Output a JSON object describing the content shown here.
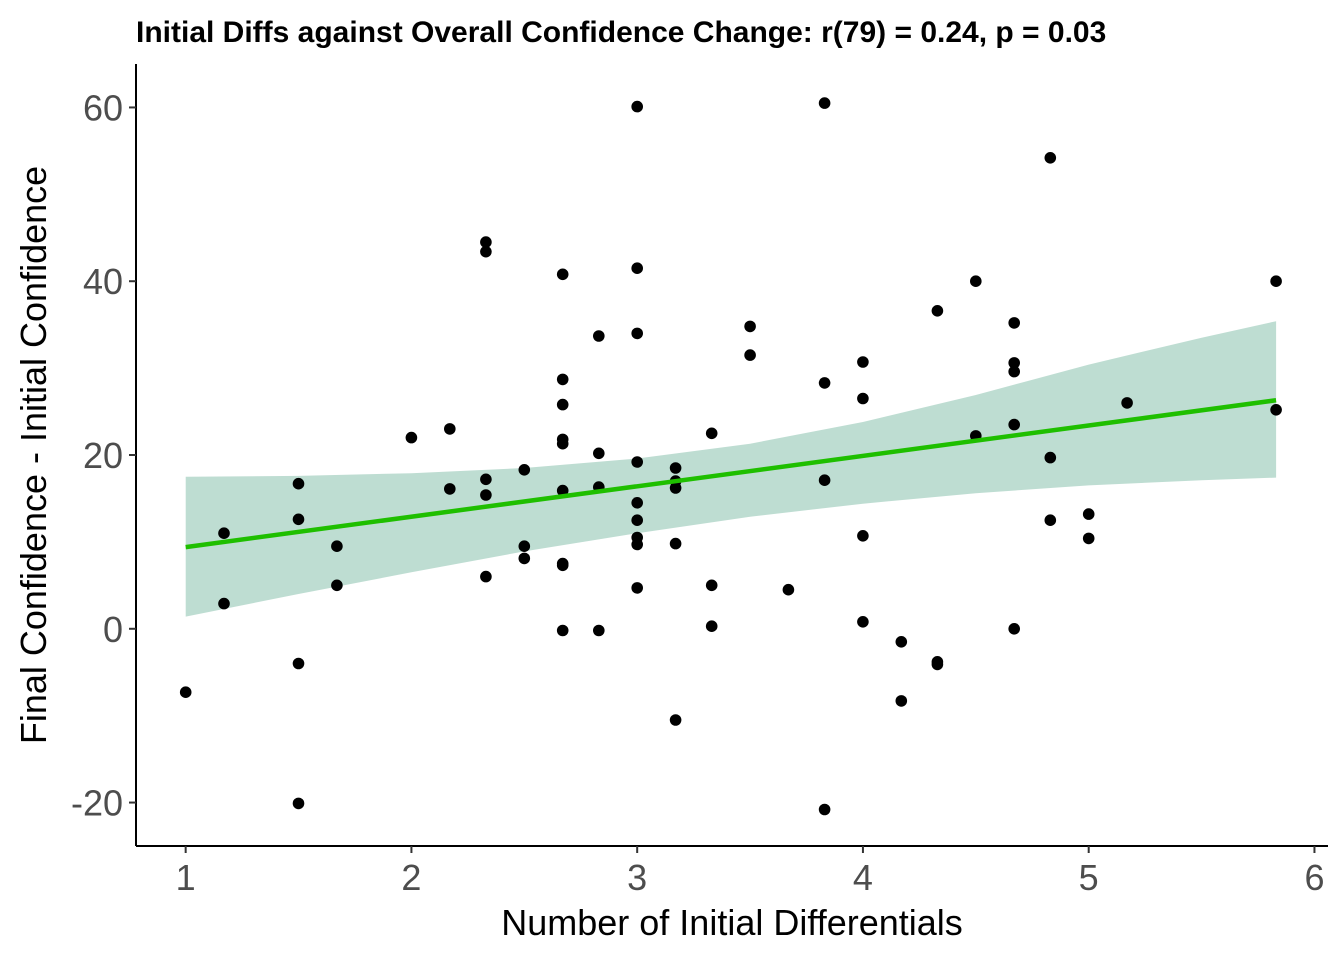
{
  "chart_data": {
    "type": "scatter",
    "title": "Initial Diffs against Overall Confidence Change: r(79) = 0.24, p = 0.03",
    "xlabel": "Number of Initial Differentials",
    "ylabel": "Final Confidence - Initial Confidence",
    "xlim": [
      0.78,
      6.06
    ],
    "ylim": [
      -25,
      65
    ],
    "x_ticks": [
      1,
      2,
      3,
      4,
      5,
      6
    ],
    "y_ticks": [
      -20,
      0,
      20,
      40,
      60
    ],
    "grid": false,
    "colors": {
      "points": "#000000",
      "fit_line": "#1fbf00",
      "confidence_band": "#8fc4b2"
    },
    "fit": {
      "x_range": [
        1,
        5.83
      ],
      "line": [
        9.4,
        26.3
      ],
      "band_lower": [
        1.4,
        17.4
      ],
      "band_upper": [
        17.5,
        35.4
      ],
      "band_points": [
        {
          "x": 1.0,
          "lower": 1.4,
          "upper": 17.5
        },
        {
          "x": 1.5,
          "lower": 4.0,
          "upper": 17.6
        },
        {
          "x": 2.0,
          "lower": 6.5,
          "upper": 17.9
        },
        {
          "x": 2.5,
          "lower": 8.9,
          "upper": 18.5
        },
        {
          "x": 3.0,
          "lower": 11.0,
          "upper": 19.6
        },
        {
          "x": 3.5,
          "lower": 12.9,
          "upper": 21.3
        },
        {
          "x": 4.0,
          "lower": 14.4,
          "upper": 23.8
        },
        {
          "x": 4.5,
          "lower": 15.6,
          "upper": 26.9
        },
        {
          "x": 5.0,
          "lower": 16.5,
          "upper": 30.4
        },
        {
          "x": 5.5,
          "lower": 17.1,
          "upper": 33.5
        },
        {
          "x": 5.83,
          "lower": 17.4,
          "upper": 35.4
        }
      ]
    },
    "points": [
      {
        "x": 1.0,
        "y": -7.3
      },
      {
        "x": 1.17,
        "y": 11.0
      },
      {
        "x": 1.17,
        "y": 2.9
      },
      {
        "x": 1.5,
        "y": 16.7
      },
      {
        "x": 1.5,
        "y": 12.6
      },
      {
        "x": 1.5,
        "y": -4.0
      },
      {
        "x": 1.5,
        "y": -20.1
      },
      {
        "x": 1.67,
        "y": 9.5
      },
      {
        "x": 1.67,
        "y": 5.0
      },
      {
        "x": 2.0,
        "y": 22.0
      },
      {
        "x": 2.17,
        "y": 23.0
      },
      {
        "x": 2.17,
        "y": 16.1
      },
      {
        "x": 2.33,
        "y": 44.5
      },
      {
        "x": 2.33,
        "y": 43.4
      },
      {
        "x": 2.33,
        "y": 17.2
      },
      {
        "x": 2.33,
        "y": 15.4
      },
      {
        "x": 2.33,
        "y": 6.0
      },
      {
        "x": 2.5,
        "y": 18.3
      },
      {
        "x": 2.5,
        "y": 9.5
      },
      {
        "x": 2.5,
        "y": 8.1
      },
      {
        "x": 2.67,
        "y": 40.8
      },
      {
        "x": 2.67,
        "y": 28.7
      },
      {
        "x": 2.67,
        "y": 25.8
      },
      {
        "x": 2.67,
        "y": 21.8
      },
      {
        "x": 2.67,
        "y": 21.3
      },
      {
        "x": 2.67,
        "y": 15.9
      },
      {
        "x": 2.67,
        "y": 7.5
      },
      {
        "x": 2.67,
        "y": 7.3
      },
      {
        "x": 2.67,
        "y": -0.2
      },
      {
        "x": 2.83,
        "y": 33.7
      },
      {
        "x": 2.83,
        "y": 20.2
      },
      {
        "x": 2.83,
        "y": 16.3
      },
      {
        "x": 2.83,
        "y": -0.2
      },
      {
        "x": 3.0,
        "y": 60.1
      },
      {
        "x": 3.0,
        "y": 41.5
      },
      {
        "x": 3.0,
        "y": 34.0
      },
      {
        "x": 3.0,
        "y": 19.2
      },
      {
        "x": 3.0,
        "y": 14.5
      },
      {
        "x": 3.0,
        "y": 12.5
      },
      {
        "x": 3.0,
        "y": 10.5
      },
      {
        "x": 3.0,
        "y": 9.7
      },
      {
        "x": 3.0,
        "y": 4.7
      },
      {
        "x": 3.17,
        "y": 18.5
      },
      {
        "x": 3.17,
        "y": 17.0
      },
      {
        "x": 3.17,
        "y": 16.2
      },
      {
        "x": 3.17,
        "y": 9.8
      },
      {
        "x": 3.17,
        "y": -10.5
      },
      {
        "x": 3.33,
        "y": 22.5
      },
      {
        "x": 3.33,
        "y": 5.0
      },
      {
        "x": 3.33,
        "y": 0.3
      },
      {
        "x": 3.5,
        "y": 34.8
      },
      {
        "x": 3.5,
        "y": 31.5
      },
      {
        "x": 3.67,
        "y": 4.5
      },
      {
        "x": 3.83,
        "y": 60.5
      },
      {
        "x": 3.83,
        "y": 28.3
      },
      {
        "x": 3.83,
        "y": 17.1
      },
      {
        "x": 3.83,
        "y": -20.8
      },
      {
        "x": 4.0,
        "y": 30.7
      },
      {
        "x": 4.0,
        "y": 26.5
      },
      {
        "x": 4.0,
        "y": 10.7
      },
      {
        "x": 4.0,
        "y": 0.8
      },
      {
        "x": 4.17,
        "y": -1.5
      },
      {
        "x": 4.17,
        "y": -8.3
      },
      {
        "x": 4.33,
        "y": 36.6
      },
      {
        "x": 4.33,
        "y": -3.8
      },
      {
        "x": 4.33,
        "y": -4.1
      },
      {
        "x": 4.5,
        "y": 40.0
      },
      {
        "x": 4.5,
        "y": 22.2
      },
      {
        "x": 4.67,
        "y": 35.2
      },
      {
        "x": 4.67,
        "y": 30.6
      },
      {
        "x": 4.67,
        "y": 29.6
      },
      {
        "x": 4.67,
        "y": 23.5
      },
      {
        "x": 4.67,
        "y": 0.0
      },
      {
        "x": 4.83,
        "y": 54.2
      },
      {
        "x": 4.83,
        "y": 19.7
      },
      {
        "x": 4.83,
        "y": 12.5
      },
      {
        "x": 5.0,
        "y": 13.2
      },
      {
        "x": 5.0,
        "y": 10.4
      },
      {
        "x": 5.17,
        "y": 26.0
      },
      {
        "x": 5.83,
        "y": 40.0
      },
      {
        "x": 5.83,
        "y": 25.2
      }
    ]
  }
}
